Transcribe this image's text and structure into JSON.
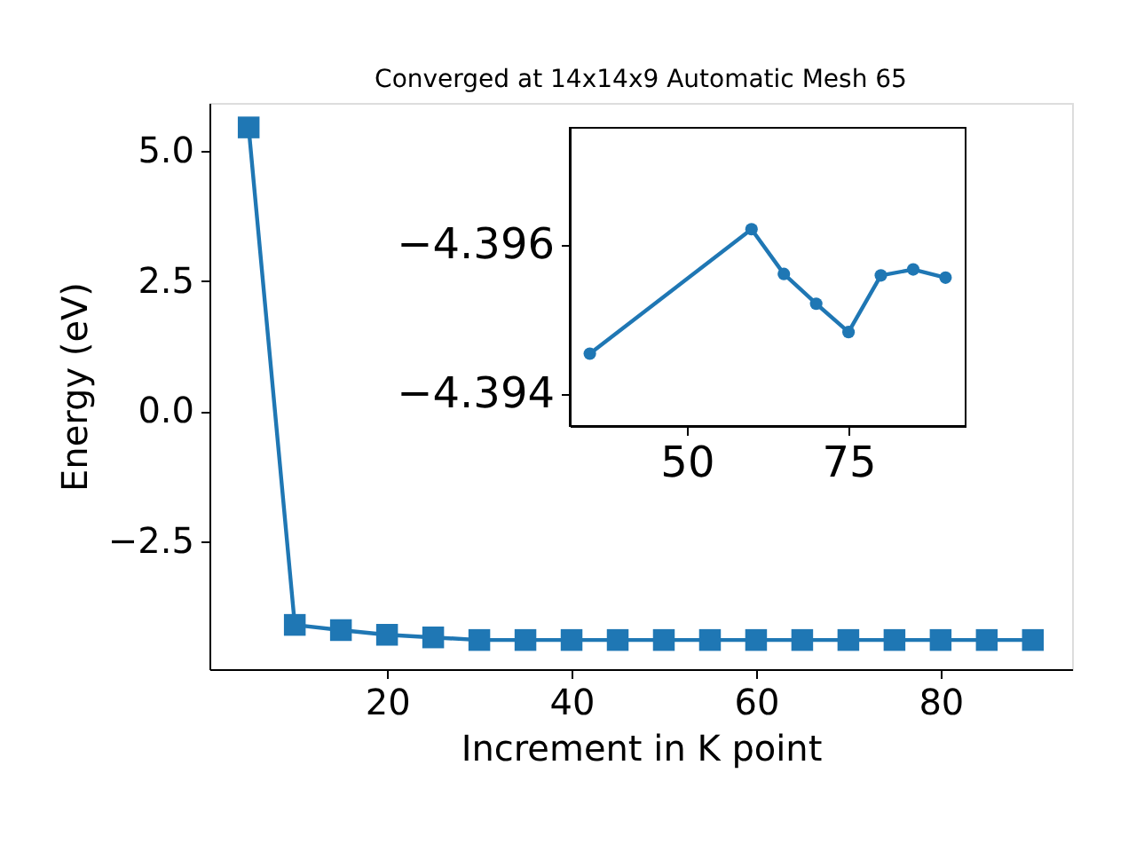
{
  "chart_data": [
    {
      "type": "line",
      "title": "Converged at 14x14x9 Automatic Mesh 65",
      "xlabel": "Increment in K point",
      "ylabel": "Energy (eV)",
      "x": [
        5,
        10,
        15,
        20,
        25,
        30,
        35,
        40,
        45,
        50,
        55,
        60,
        65,
        70,
        75,
        80,
        85,
        90
      ],
      "series": [
        {
          "color": "#1f77b4",
          "values": [
            5.45,
            -4.1,
            -4.2,
            -4.29,
            -4.34,
            -4.39,
            -4.39,
            -4.39,
            -4.39,
            -4.39,
            -4.39,
            -4.39,
            -4.39,
            -4.39,
            -4.39,
            -4.39,
            -4.39,
            -4.39
          ]
        }
      ],
      "xlim": [
        0.75,
        94.25
      ],
      "ylim": [
        -4.95,
        5.92
      ],
      "xticks": [
        20,
        40,
        60,
        80
      ],
      "yticks": [
        {
          "value": -2.5,
          "label": "−2.5"
        },
        {
          "value": 0,
          "label": "0.0"
        },
        {
          "value": 2.5,
          "label": "2.5"
        },
        {
          "value": 5,
          "label": "5.0"
        }
      ],
      "marker": "square",
      "line_style": "solid",
      "grid": false
    },
    {
      "type": "line",
      "x": [
        35,
        60,
        65,
        70,
        75,
        80,
        85,
        90
      ],
      "series": [
        {
          "color": "#1f77b4",
          "values": [
            -4.39454,
            -4.39621,
            -4.39561,
            -4.39521,
            -4.39483,
            -4.39559,
            -4.39567,
            -4.39556
          ]
        }
      ],
      "xlim": [
        31.9,
        93.1
      ],
      "ylim": [
        -4.39357,
        -4.39757
      ],
      "xticks": [
        50,
        75
      ],
      "yticks": [
        {
          "value": -4.396,
          "label": "−4.396"
        },
        {
          "value": -4.394,
          "label": "−4.394"
        }
      ],
      "marker": "circle",
      "line_style": "solid",
      "grid": false
    }
  ]
}
